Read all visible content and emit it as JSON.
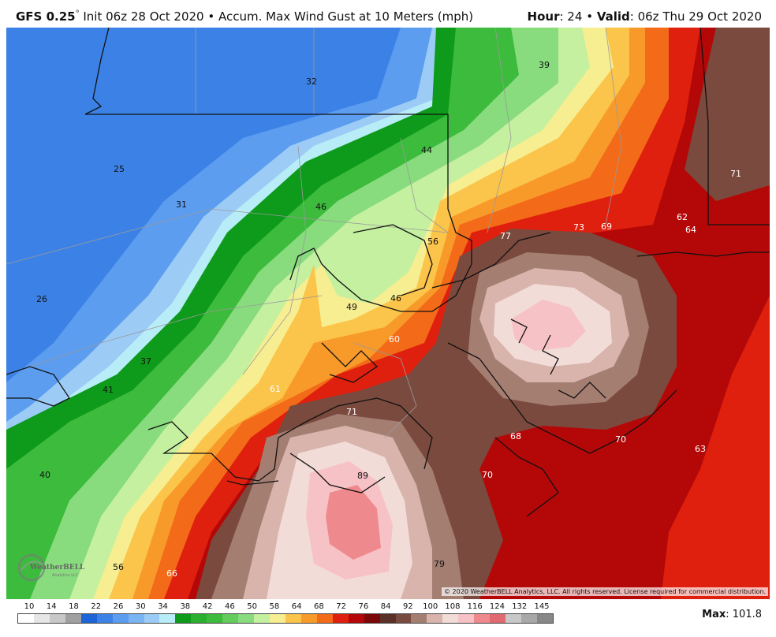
{
  "header": {
    "model": "GFS 0.25",
    "degree": "°",
    "init": "Init 06z 28 Oct 2020",
    "bullet": "•",
    "product": "Accum. Max Wind Gust at 10 Meters (mph)",
    "hour_label": "Hour",
    "hour_value": ": 24",
    "valid_label": "Valid",
    "valid_value": ": 06z Thu 29 Oct 2020"
  },
  "map": {
    "labels": [
      {
        "text": "32",
        "tone": "dark"
      },
      {
        "text": "39",
        "tone": "dark"
      },
      {
        "text": "25",
        "tone": "dark"
      },
      {
        "text": "44",
        "tone": "dark"
      },
      {
        "text": "71",
        "tone": "light"
      },
      {
        "text": "31",
        "tone": "dark"
      },
      {
        "text": "46",
        "tone": "dark"
      },
      {
        "text": "62",
        "tone": "light"
      },
      {
        "text": "64",
        "tone": "light"
      },
      {
        "text": "73",
        "tone": "light"
      },
      {
        "text": "69",
        "tone": "light"
      },
      {
        "text": "77",
        "tone": "light"
      },
      {
        "text": "56",
        "tone": "dark"
      },
      {
        "text": "26",
        "tone": "dark"
      },
      {
        "text": "49",
        "tone": "dark"
      },
      {
        "text": "46",
        "tone": "dark"
      },
      {
        "text": "60",
        "tone": "light"
      },
      {
        "text": "37",
        "tone": "dark"
      },
      {
        "text": "41",
        "tone": "dark"
      },
      {
        "text": "61",
        "tone": "light"
      },
      {
        "text": "71",
        "tone": "light"
      },
      {
        "text": "68",
        "tone": "light"
      },
      {
        "text": "70",
        "tone": "light"
      },
      {
        "text": "63",
        "tone": "light"
      },
      {
        "text": "40",
        "tone": "dark"
      },
      {
        "text": "89",
        "tone": "dark"
      },
      {
        "text": "70",
        "tone": "light"
      },
      {
        "text": "56",
        "tone": "dark"
      },
      {
        "text": "66",
        "tone": "light"
      },
      {
        "text": "79",
        "tone": "dark"
      }
    ],
    "colors": {
      "c25": "#3c82e6",
      "c30": "#5c9df0",
      "c34": "#9cccf6",
      "c36": "#b8ecf6",
      "c38": "#0e9a1a",
      "c42": "#3cbb3c",
      "c46": "#88dc7e",
      "c50": "#c4f0a0",
      "c54": "#f6ee90",
      "c58": "#fbc44a",
      "c62": "#f89a2a",
      "c66": "#f36a18",
      "c70": "#e0200e",
      "c74": "#b40808",
      "c78": "#7a4a3e",
      "c82": "#a57e72",
      "c86": "#d8b4ac",
      "c90": "#f2dcd8",
      "c94": "#f7c2c6",
      "c98": "#ee8a8e"
    }
  },
  "logo": {
    "name": "WeatherBELL",
    "subtitle": "Analytics LLC"
  },
  "copyright": "© 2020 WeatherBELL Analytics, LLC. All rights reserved. License required for commercial distribution.",
  "legend": {
    "ticks": [
      "10",
      "14",
      "18",
      "22",
      "26",
      "30",
      "34",
      "38",
      "42",
      "46",
      "50",
      "58",
      "64",
      "68",
      "72",
      "76",
      "84",
      "92",
      "100",
      "108",
      "116",
      "124",
      "132",
      "145"
    ],
    "colors": [
      "#ffffff",
      "#e6e6e6",
      "#c8c8c8",
      "#a0a0a0",
      "#1c64d8",
      "#3c82e6",
      "#5c9df0",
      "#7ab4f2",
      "#9cccf6",
      "#b8ecf6",
      "#0e9a1a",
      "#2ab02e",
      "#3cbb3c",
      "#62cc5c",
      "#88dc7e",
      "#c4f0a0",
      "#f6ee90",
      "#fbc44a",
      "#f89a2a",
      "#f36a18",
      "#e0200e",
      "#b40808",
      "#7a0808",
      "#5a3028",
      "#7a4a3e",
      "#a57e72",
      "#d8b4ac",
      "#f2dcd8",
      "#f7c2c6",
      "#ee8a8e",
      "#e06a70",
      "#c8c8c8",
      "#a8a8a8",
      "#888888"
    ]
  },
  "max": {
    "label": "Max",
    "value": ": 101.8"
  }
}
